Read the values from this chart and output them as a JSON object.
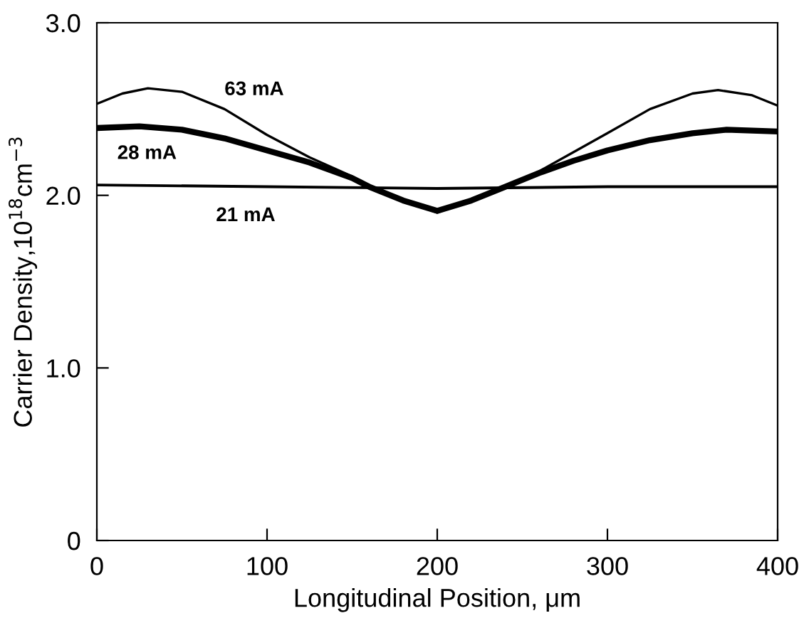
{
  "chart_data": {
    "type": "line",
    "xlabel": "Longitudinal Position, μm",
    "ylabel": "Carrier Density,10$^{18}$cm$^{−3}$",
    "xlim": [
      0,
      400
    ],
    "ylim": [
      0,
      3.0
    ],
    "xticks": [
      0,
      100,
      200,
      300,
      400
    ],
    "yticks": [
      0,
      {
        "value": 1.0,
        "label": "1.0"
      },
      {
        "value": 2.0,
        "label": "2.0"
      },
      {
        "value": 3.0,
        "label": "3.0"
      }
    ],
    "grid": false,
    "legend": false,
    "marker": "none",
    "line_style": "solid",
    "series": [
      {
        "name": "63 mA",
        "color": "#000000",
        "x": [
          0,
          15,
          30,
          50,
          75,
          100,
          125,
          150,
          160,
          180,
          200,
          220,
          240,
          260,
          280,
          300,
          325,
          350,
          365,
          385,
          400
        ],
        "values": [
          2.53,
          2.59,
          2.62,
          2.6,
          2.5,
          2.35,
          2.22,
          2.11,
          2.05,
          1.97,
          1.9,
          1.97,
          2.05,
          2.14,
          2.25,
          2.36,
          2.5,
          2.59,
          2.61,
          2.58,
          2.52
        ]
      },
      {
        "name": "28 mA",
        "color": "#000000",
        "x": [
          0,
          25,
          50,
          75,
          100,
          125,
          150,
          160,
          180,
          200,
          220,
          240,
          260,
          280,
          300,
          325,
          350,
          370,
          400
        ],
        "values": [
          2.39,
          2.4,
          2.38,
          2.33,
          2.26,
          2.19,
          2.1,
          2.05,
          1.97,
          1.91,
          1.97,
          2.05,
          2.13,
          2.2,
          2.26,
          2.32,
          2.36,
          2.38,
          2.37
        ]
      },
      {
        "name": "21 mA",
        "color": "#000000",
        "x": [
          0,
          100,
          200,
          300,
          400
        ],
        "values": [
          2.06,
          2.05,
          2.04,
          2.05,
          2.05
        ]
      }
    ]
  }
}
